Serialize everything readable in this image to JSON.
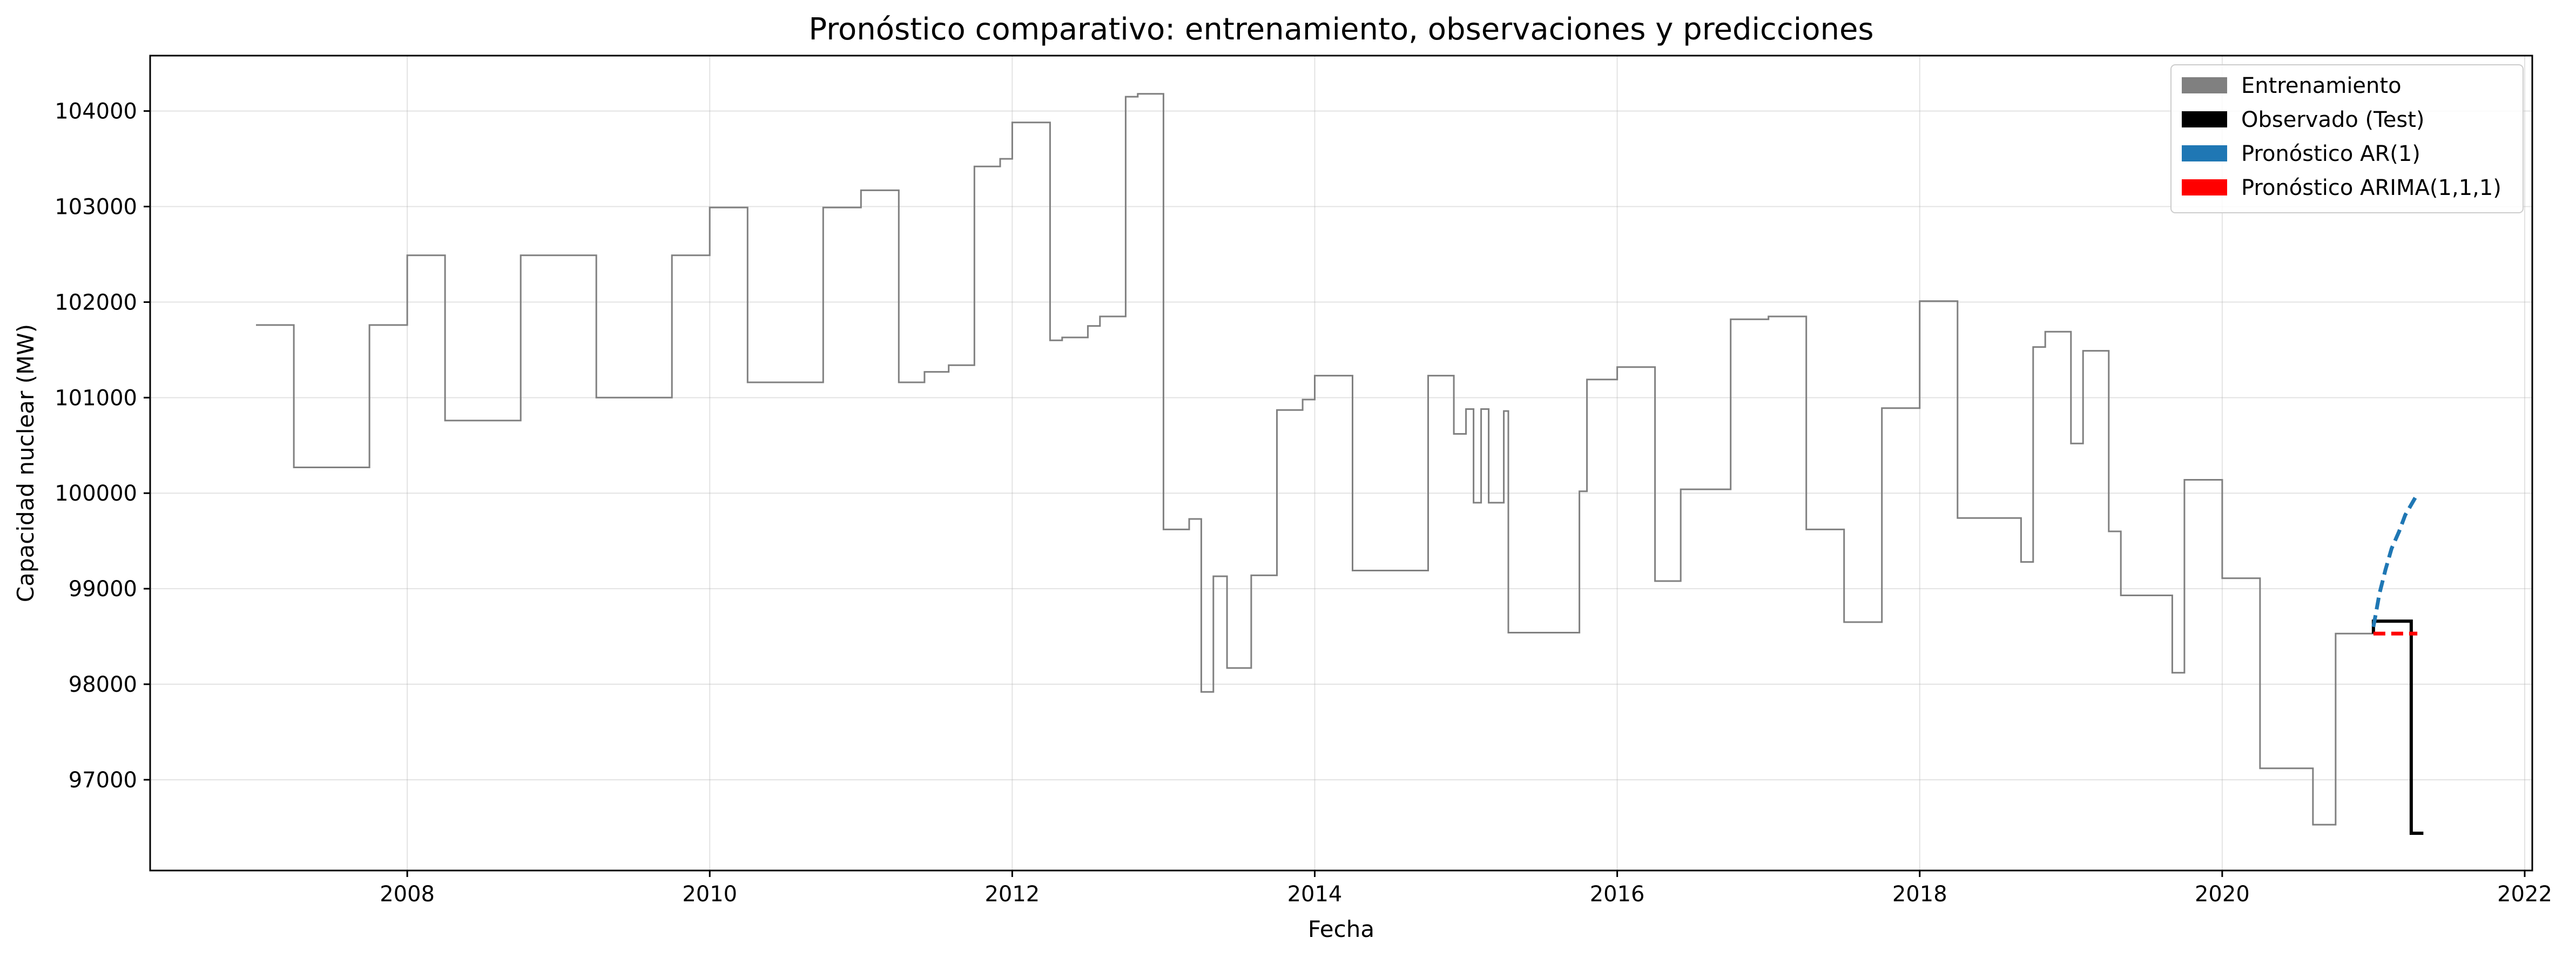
{
  "chart_data": {
    "type": "line",
    "title": "Pronóstico comparativo: entrenamiento, observaciones y predicciones",
    "xlabel": "Fecha",
    "ylabel": "Capacidad nuclear (MW)",
    "xlim": [
      2006.3,
      2022.05
    ],
    "ylim": [
      96050,
      104580
    ],
    "grid": true,
    "legend_position": "top-right",
    "x_ticks": [
      2008,
      2010,
      2012,
      2014,
      2016,
      2018,
      2020,
      2022
    ],
    "x_tick_labels": [
      "2008",
      "2010",
      "2012",
      "2014",
      "2016",
      "2018",
      "2020",
      "2022"
    ],
    "y_ticks": [
      97000,
      98000,
      99000,
      100000,
      101000,
      102000,
      103000,
      104000
    ],
    "y_tick_labels": [
      "97000",
      "98000",
      "99000",
      "100000",
      "101000",
      "102000",
      "103000",
      "104000"
    ],
    "legend": [
      {
        "label": "Entrenamiento",
        "color": "#808080"
      },
      {
        "label": "Observado (Test)",
        "color": "#000000"
      },
      {
        "label": "Pronóstico AR(1)",
        "color": "#1f77b4"
      },
      {
        "label": "Pronóstico ARIMA(1,1,1)",
        "color": "#ff0000"
      }
    ],
    "series": [
      {
        "name": "Entrenamiento",
        "color": "#808080",
        "style": "step",
        "points": [
          [
            2007.0,
            101760
          ],
          [
            2007.25,
            101760
          ],
          [
            2007.25,
            100270
          ],
          [
            2007.75,
            100270
          ],
          [
            2007.75,
            101760
          ],
          [
            2008.0,
            101760
          ],
          [
            2008.0,
            102490
          ],
          [
            2008.25,
            102490
          ],
          [
            2008.25,
            100760
          ],
          [
            2008.75,
            100760
          ],
          [
            2008.75,
            102490
          ],
          [
            2009.25,
            102490
          ],
          [
            2009.25,
            101000
          ],
          [
            2009.75,
            101000
          ],
          [
            2009.75,
            102490
          ],
          [
            2010.0,
            102490
          ],
          [
            2010.0,
            102990
          ],
          [
            2010.25,
            102990
          ],
          [
            2010.25,
            101160
          ],
          [
            2010.75,
            101160
          ],
          [
            2010.75,
            102990
          ],
          [
            2011.0,
            102990
          ],
          [
            2011.0,
            103170
          ],
          [
            2011.25,
            103170
          ],
          [
            2011.25,
            101160
          ],
          [
            2011.42,
            101160
          ],
          [
            2011.42,
            101270
          ],
          [
            2011.58,
            101270
          ],
          [
            2011.58,
            101340
          ],
          [
            2011.75,
            101340
          ],
          [
            2011.75,
            103420
          ],
          [
            2011.92,
            103420
          ],
          [
            2011.92,
            103500
          ],
          [
            2012.0,
            103500
          ],
          [
            2012.0,
            103880
          ],
          [
            2012.25,
            103880
          ],
          [
            2012.25,
            101600
          ],
          [
            2012.33,
            101600
          ],
          [
            2012.33,
            101630
          ],
          [
            2012.5,
            101630
          ],
          [
            2012.5,
            101750
          ],
          [
            2012.58,
            101750
          ],
          [
            2012.58,
            101850
          ],
          [
            2012.75,
            101850
          ],
          [
            2012.75,
            104150
          ],
          [
            2012.83,
            104150
          ],
          [
            2012.83,
            104180
          ],
          [
            2013.0,
            104180
          ],
          [
            2013.0,
            99620
          ],
          [
            2013.17,
            99620
          ],
          [
            2013.17,
            99730
          ],
          [
            2013.25,
            99730
          ],
          [
            2013.25,
            97920
          ],
          [
            2013.33,
            97920
          ],
          [
            2013.33,
            99130
          ],
          [
            2013.42,
            99130
          ],
          [
            2013.42,
            98170
          ],
          [
            2013.58,
            98170
          ],
          [
            2013.58,
            99140
          ],
          [
            2013.75,
            99140
          ],
          [
            2013.75,
            100870
          ],
          [
            2013.92,
            100870
          ],
          [
            2013.92,
            100980
          ],
          [
            2014.0,
            100980
          ],
          [
            2014.0,
            101230
          ],
          [
            2014.25,
            101230
          ],
          [
            2014.25,
            99190
          ],
          [
            2014.75,
            99190
          ],
          [
            2014.75,
            101230
          ],
          [
            2014.92,
            101230
          ],
          [
            2014.92,
            100620
          ],
          [
            2015.0,
            100620
          ],
          [
            2015.0,
            100880
          ],
          [
            2015.05,
            100880
          ],
          [
            2015.05,
            99900
          ],
          [
            2015.1,
            99900
          ],
          [
            2015.1,
            100880
          ],
          [
            2015.15,
            100880
          ],
          [
            2015.15,
            99900
          ],
          [
            2015.25,
            99900
          ],
          [
            2015.25,
            100860
          ],
          [
            2015.28,
            100860
          ],
          [
            2015.28,
            98540
          ],
          [
            2015.75,
            98540
          ],
          [
            2015.75,
            100020
          ],
          [
            2015.8,
            100020
          ],
          [
            2015.8,
            101190
          ],
          [
            2016.0,
            101190
          ],
          [
            2016.0,
            101320
          ],
          [
            2016.25,
            101320
          ],
          [
            2016.25,
            99080
          ],
          [
            2016.42,
            99080
          ],
          [
            2016.42,
            100040
          ],
          [
            2016.75,
            100040
          ],
          [
            2016.75,
            101820
          ],
          [
            2017.0,
            101820
          ],
          [
            2017.0,
            101850
          ],
          [
            2017.25,
            101850
          ],
          [
            2017.25,
            99620
          ],
          [
            2017.5,
            99620
          ],
          [
            2017.5,
            98650
          ],
          [
            2017.75,
            98650
          ],
          [
            2017.75,
            100890
          ],
          [
            2018.0,
            100890
          ],
          [
            2018.0,
            102010
          ],
          [
            2018.25,
            102010
          ],
          [
            2018.25,
            99740
          ],
          [
            2018.67,
            99740
          ],
          [
            2018.67,
            99280
          ],
          [
            2018.75,
            99280
          ],
          [
            2018.75,
            101530
          ],
          [
            2018.83,
            101530
          ],
          [
            2018.83,
            101690
          ],
          [
            2019.0,
            101690
          ],
          [
            2019.0,
            100520
          ],
          [
            2019.08,
            100520
          ],
          [
            2019.08,
            101490
          ],
          [
            2019.25,
            101490
          ],
          [
            2019.25,
            99600
          ],
          [
            2019.33,
            99600
          ],
          [
            2019.33,
            98930
          ],
          [
            2019.67,
            98930
          ],
          [
            2019.67,
            98120
          ],
          [
            2019.75,
            98120
          ],
          [
            2019.75,
            100140
          ],
          [
            2020.0,
            100140
          ],
          [
            2020.0,
            99110
          ],
          [
            2020.25,
            99110
          ],
          [
            2020.25,
            97120
          ],
          [
            2020.6,
            97120
          ],
          [
            2020.6,
            96530
          ],
          [
            2020.75,
            96530
          ],
          [
            2020.75,
            98530
          ],
          [
            2021.0,
            98530
          ]
        ]
      },
      {
        "name": "Observado (Test)",
        "color": "#000000",
        "style": "step",
        "points": [
          [
            2021.0,
            98530
          ],
          [
            2021.0,
            98660
          ],
          [
            2021.25,
            98660
          ],
          [
            2021.25,
            96440
          ],
          [
            2021.33,
            96440
          ]
        ]
      },
      {
        "name": "Pronóstico AR(1)",
        "color": "#1f77b4",
        "style": "dashed",
        "points": [
          [
            2021.0,
            98600
          ],
          [
            2021.04,
            98950
          ],
          [
            2021.08,
            99200
          ],
          [
            2021.12,
            99420
          ],
          [
            2021.17,
            99600
          ],
          [
            2021.21,
            99770
          ],
          [
            2021.25,
            99880
          ],
          [
            2021.29,
            99990
          ]
        ]
      },
      {
        "name": "Pronóstico ARIMA(1,1,1)",
        "color": "#ff0000",
        "style": "dashed",
        "points": [
          [
            2021.0,
            98530
          ],
          [
            2021.29,
            98530
          ]
        ]
      }
    ]
  }
}
